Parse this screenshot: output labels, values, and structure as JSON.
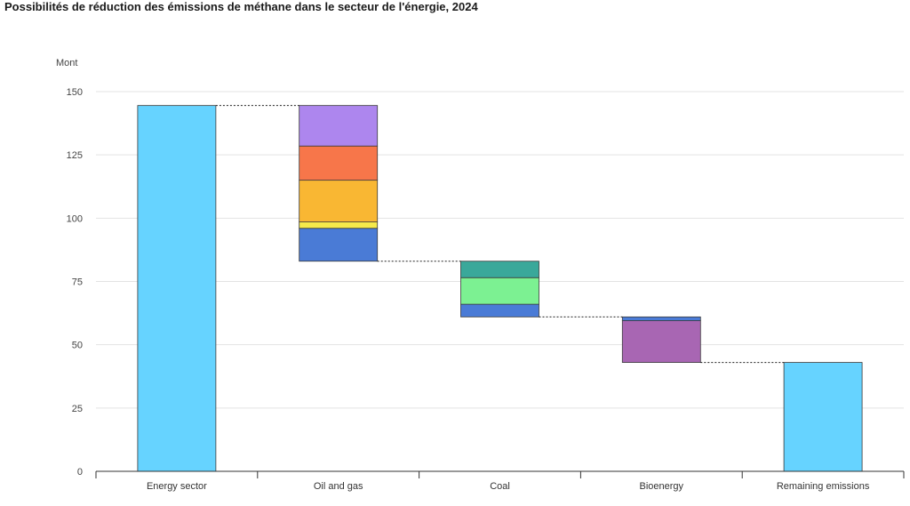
{
  "chart_data": {
    "type": "bar",
    "title": "Possibilités de réduction des émissions de méthane dans le secteur de l'énergie, 2024",
    "ylabel": "Mont",
    "ylim": [
      0,
      150
    ],
    "yticks": [
      0,
      25,
      50,
      75,
      100,
      125,
      150
    ],
    "grid": true,
    "categories": [
      "Energy sector",
      "Oil and gas",
      "Coal",
      "Bioenergy",
      "Remaining emissions"
    ],
    "bars": [
      {
        "category": "Energy sector",
        "kind": "total",
        "segments": [
          {
            "from": 0,
            "to": 144.5,
            "color": "#66d3ff"
          }
        ]
      },
      {
        "category": "Oil and gas",
        "kind": "reduction",
        "segments": [
          {
            "from": 83,
            "to": 96,
            "color": "#4a7bd6"
          },
          {
            "from": 96,
            "to": 98.5,
            "color": "#f5e94a"
          },
          {
            "from": 98.5,
            "to": 115,
            "color": "#f9b733"
          },
          {
            "from": 115,
            "to": 128.5,
            "color": "#f7764a"
          },
          {
            "from": 128.5,
            "to": 144.5,
            "color": "#ad86ee"
          }
        ]
      },
      {
        "category": "Coal",
        "kind": "reduction",
        "segments": [
          {
            "from": 61,
            "to": 66,
            "color": "#4a7bd6"
          },
          {
            "from": 66,
            "to": 76.5,
            "color": "#7cf192"
          },
          {
            "from": 76.5,
            "to": 83,
            "color": "#3aa89a"
          }
        ]
      },
      {
        "category": "Bioenergy",
        "kind": "reduction",
        "segments": [
          {
            "from": 43,
            "to": 59.5,
            "color": "#a866b3"
          },
          {
            "from": 59.5,
            "to": 61,
            "color": "#4a7bd6"
          }
        ]
      },
      {
        "category": "Remaining emissions",
        "kind": "total",
        "segments": [
          {
            "from": 0,
            "to": 43,
            "color": "#66d3ff"
          }
        ]
      }
    ],
    "connectors": [
      {
        "from_category": "Energy sector",
        "to_category": "Oil and gas",
        "value": 144.5
      },
      {
        "from_category": "Oil and gas",
        "to_category": "Coal",
        "value": 83
      },
      {
        "from_category": "Coal",
        "to_category": "Bioenergy",
        "value": 61
      },
      {
        "from_category": "Bioenergy",
        "to_category": "Remaining emissions",
        "value": 43
      }
    ]
  }
}
